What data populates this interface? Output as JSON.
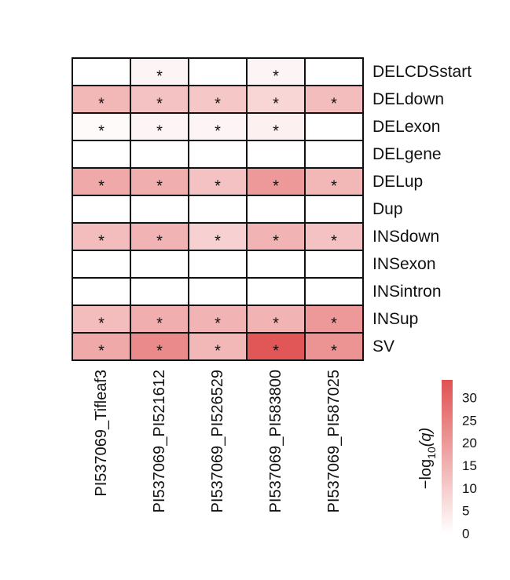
{
  "chart_data": {
    "type": "heatmap",
    "rows": [
      "DELCDSstart",
      "DELdown",
      "DELexon",
      "DELgene",
      "DELup",
      "Dup",
      "INSdown",
      "INSexon",
      "INSintron",
      "INSup",
      "SV"
    ],
    "columns": [
      "PI537069_Tifleaf3",
      "PI537069_PI521612",
      "PI537069_PI526529",
      "PI537069_PI583800",
      "PI537069_PI587025"
    ],
    "values": [
      [
        0,
        2,
        0,
        2,
        0
      ],
      [
        14,
        12,
        11,
        8,
        13
      ],
      [
        1,
        2,
        2,
        3,
        0
      ],
      [
        0,
        0,
        0,
        0,
        0
      ],
      [
        17,
        16,
        12,
        20,
        14
      ],
      [
        0,
        0,
        0,
        0,
        0
      ],
      [
        13,
        15,
        9,
        15,
        12
      ],
      [
        0,
        0,
        0,
        0,
        0
      ],
      [
        0,
        0,
        0,
        0,
        0
      ],
      [
        13,
        16,
        15,
        15,
        20
      ],
      [
        17,
        23,
        14,
        33,
        21
      ]
    ],
    "significant": [
      [
        false,
        true,
        false,
        true,
        false
      ],
      [
        true,
        true,
        true,
        true,
        true
      ],
      [
        true,
        true,
        true,
        true,
        false
      ],
      [
        false,
        false,
        false,
        false,
        false
      ],
      [
        true,
        true,
        true,
        true,
        true
      ],
      [
        false,
        false,
        false,
        false,
        false
      ],
      [
        true,
        true,
        true,
        true,
        true
      ],
      [
        false,
        false,
        false,
        false,
        false
      ],
      [
        false,
        false,
        false,
        false,
        false
      ],
      [
        true,
        true,
        true,
        true,
        true
      ],
      [
        true,
        true,
        true,
        true,
        true
      ]
    ],
    "star_symbol": "*",
    "colorbar": {
      "title": "-log10 (q)",
      "title_main": "−log",
      "title_sub": "10",
      "title_var": "(q)",
      "range": [
        0,
        34
      ],
      "ticks": [
        0,
        5,
        10,
        15,
        20,
        25,
        30
      ],
      "color_low": "#ffffff",
      "color_high": "#e05252"
    }
  }
}
